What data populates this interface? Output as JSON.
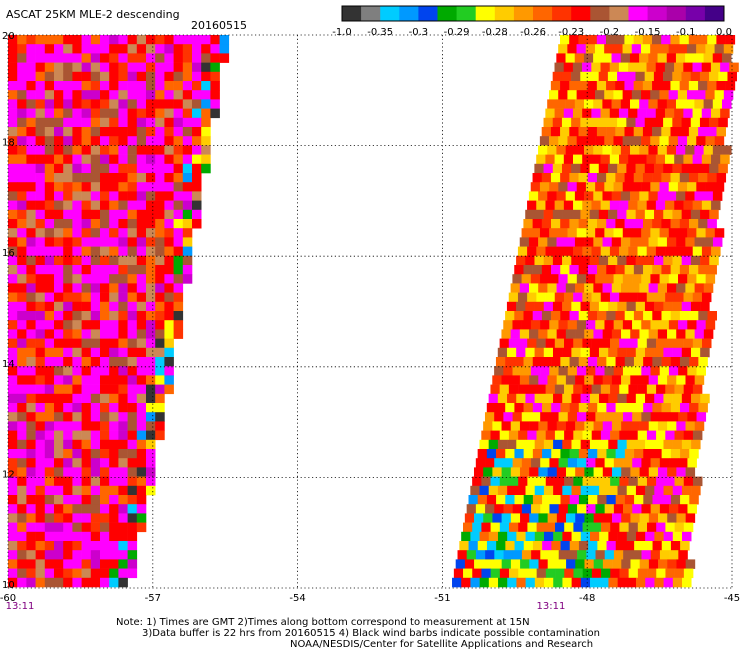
{
  "title": "ASCAT 25KM MLE-2 descending",
  "date": "20160515",
  "colorbar": {
    "colors": [
      "#333333",
      "#7f7f7f",
      "#00ccff",
      "#0099ff",
      "#0044ee",
      "#00aa00",
      "#22cc22",
      "#ffff00",
      "#ffcc00",
      "#ff9900",
      "#ff6600",
      "#ff3300",
      "#ff0000",
      "#aa5533",
      "#cc8855",
      "#ff00ff",
      "#cc00cc",
      "#aa00aa",
      "#7700aa",
      "#440088"
    ],
    "labels": [
      "-1.0",
      "-0.35",
      "-0.3",
      "-0.29",
      "-0.28",
      "-0.26",
      "-0.23",
      "-0.2",
      "-0.15",
      "-0.1",
      "0.0"
    ]
  },
  "map": {
    "lon_range": [
      -60,
      -45
    ],
    "lat_range": [
      10,
      20
    ],
    "x_ticks": [
      {
        "lon": -60,
        "label": "-60"
      },
      {
        "lon": -57,
        "label": "-57"
      },
      {
        "lon": -54,
        "label": "-54"
      },
      {
        "lon": -51,
        "label": "-51"
      },
      {
        "lon": -48,
        "label": "-48"
      },
      {
        "lon": -45,
        "label": "-45"
      }
    ],
    "y_ticks": [
      {
        "lat": 20,
        "label": "20"
      },
      {
        "lat": 18,
        "label": "18"
      },
      {
        "lat": 16,
        "label": "16"
      },
      {
        "lat": 14,
        "label": "14"
      },
      {
        "lat": 12,
        "label": "12"
      },
      {
        "lat": 10,
        "label": "10"
      }
    ],
    "time_labels": [
      {
        "lon": -60,
        "text": "13:11"
      },
      {
        "lon": -49,
        "text": "13:11"
      }
    ],
    "time_label_color": "#800080",
    "grid": "dotted"
  },
  "notes": [
    "Note: 1) Times are GMT 2)Times along bottom correspond to measurement at 15N",
    "3)Data buffer is 22 hrs from 20160515 4) Black wind barbs indicate possible contamination",
    "NOAA/NESDIS/Center for Satellite Applications and Research"
  ]
}
